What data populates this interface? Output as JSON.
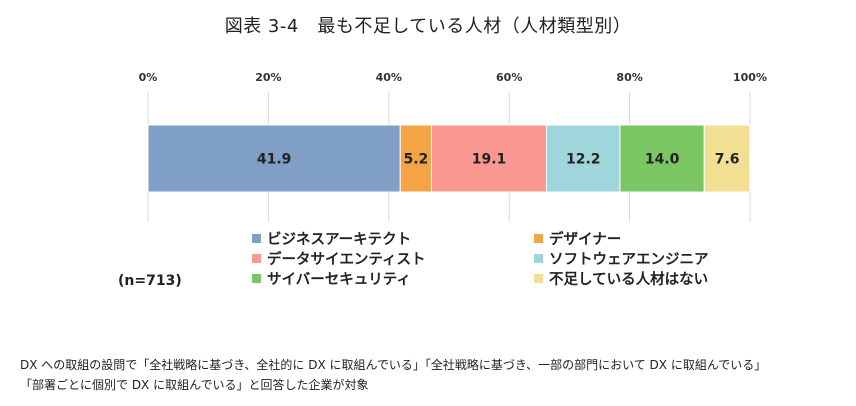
{
  "title": "図表 3-4　最も不足している人材（人材類型別）",
  "sample": "(n=713)",
  "footnote": {
    "line1": "DX への取組の設問で「全社戦略に基づき、全社的に DX に取組んでいる」「全社戦略に基づき、一部の部門において DX に取組んでいる」",
    "line2": "「部署ごとに個別で DX に取組んでいる」と回答した企業が対象"
  },
  "chart_data": {
    "type": "bar",
    "orientation": "horizontal",
    "stacked": true,
    "normalized": "100%",
    "title": "図表 3-4　最も不足している人材（人材類型別）",
    "xlim": [
      0,
      100
    ],
    "x_ticks": [
      "0%",
      "20%",
      "40%",
      "60%",
      "80%",
      "100%"
    ],
    "x_tick_values": [
      0,
      20,
      40,
      60,
      80,
      100
    ],
    "grid": true,
    "legend_position": "bottom",
    "series": [
      {
        "name": "ビジネスアーキテクト",
        "value": 41.9,
        "label": "41.9",
        "color": "#7f9fc6"
      },
      {
        "name": "デザイナー",
        "value": 5.2,
        "label": "5.2",
        "color": "#f4a445"
      },
      {
        "name": "データサイエンティスト",
        "value": 19.1,
        "label": "19.1",
        "color": "#fb9892"
      },
      {
        "name": "ソフトウェアエンジニア",
        "value": 12.2,
        "label": "12.2",
        "color": "#9fd6db"
      },
      {
        "name": "サイバーセキュリティ",
        "value": 14.0,
        "label": "14.0",
        "color": "#79c663"
      },
      {
        "name": "不足している人材はない",
        "value": 7.6,
        "label": "7.6",
        "color": "#f2df94"
      }
    ]
  }
}
